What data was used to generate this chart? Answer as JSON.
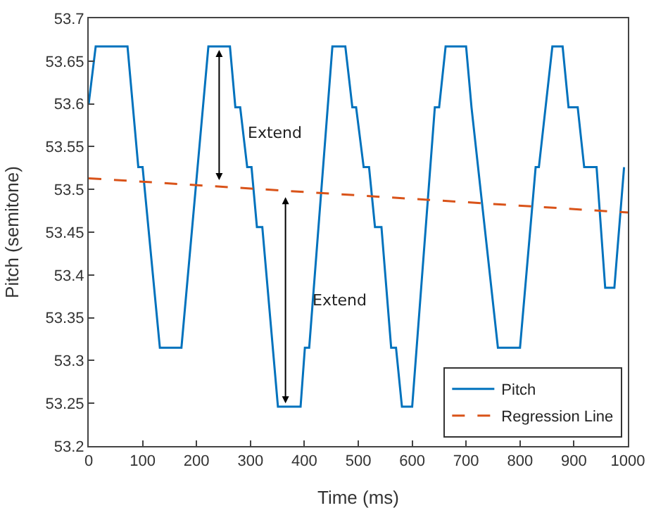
{
  "chart_data": {
    "type": "line",
    "xlabel": "Time (ms)",
    "ylabel": "Pitch (semitone)",
    "xlim": [
      0,
      1000
    ],
    "xticks": [
      0,
      100,
      200,
      300,
      400,
      500,
      600,
      700,
      800,
      900,
      1000
    ],
    "ylim": [
      53.2,
      53.7
    ],
    "yticks": [
      53.2,
      53.25,
      53.3,
      53.35,
      53.4,
      53.45,
      53.5,
      53.55,
      53.6,
      53.65,
      53.7
    ],
    "grid": false,
    "legend": "bottom right",
    "marker": "none",
    "annotations": [
      "Extend",
      "Extend"
    ],
    "series": [
      {
        "name": "Pitch",
        "color": "#0072bd",
        "line_style": "solid",
        "x": [
          0,
          13,
          72,
          92,
          100,
          132,
          172,
          222,
          262,
          272,
          281,
          294,
          302,
          312,
          322,
          351,
          393,
          401,
          409,
          452,
          476,
          489,
          496,
          510,
          520,
          531,
          543,
          561,
          570,
          581,
          600,
          642,
          650,
          662,
          700,
          710,
          759,
          800,
          829,
          835,
          860,
          879,
          890,
          907,
          919,
          942,
          958,
          975,
          993
        ],
        "values": [
          53.6,
          53.667,
          53.667,
          53.526,
          53.526,
          53.315,
          53.315,
          53.667,
          53.667,
          53.596,
          53.596,
          53.526,
          53.526,
          53.456,
          53.456,
          53.246,
          53.246,
          53.315,
          53.315,
          53.667,
          53.667,
          53.596,
          53.596,
          53.526,
          53.526,
          53.456,
          53.456,
          53.315,
          53.315,
          53.246,
          53.246,
          53.596,
          53.596,
          53.667,
          53.667,
          53.596,
          53.315,
          53.315,
          53.526,
          53.526,
          53.667,
          53.667,
          53.596,
          53.596,
          53.526,
          53.526,
          53.385,
          53.385,
          53.526
        ]
      },
      {
        "name": "Regression Line",
        "color": "#d95319",
        "line_style": "dashed",
        "x": [
          0,
          1000
        ],
        "values": [
          53.513,
          53.473
        ]
      }
    ]
  }
}
